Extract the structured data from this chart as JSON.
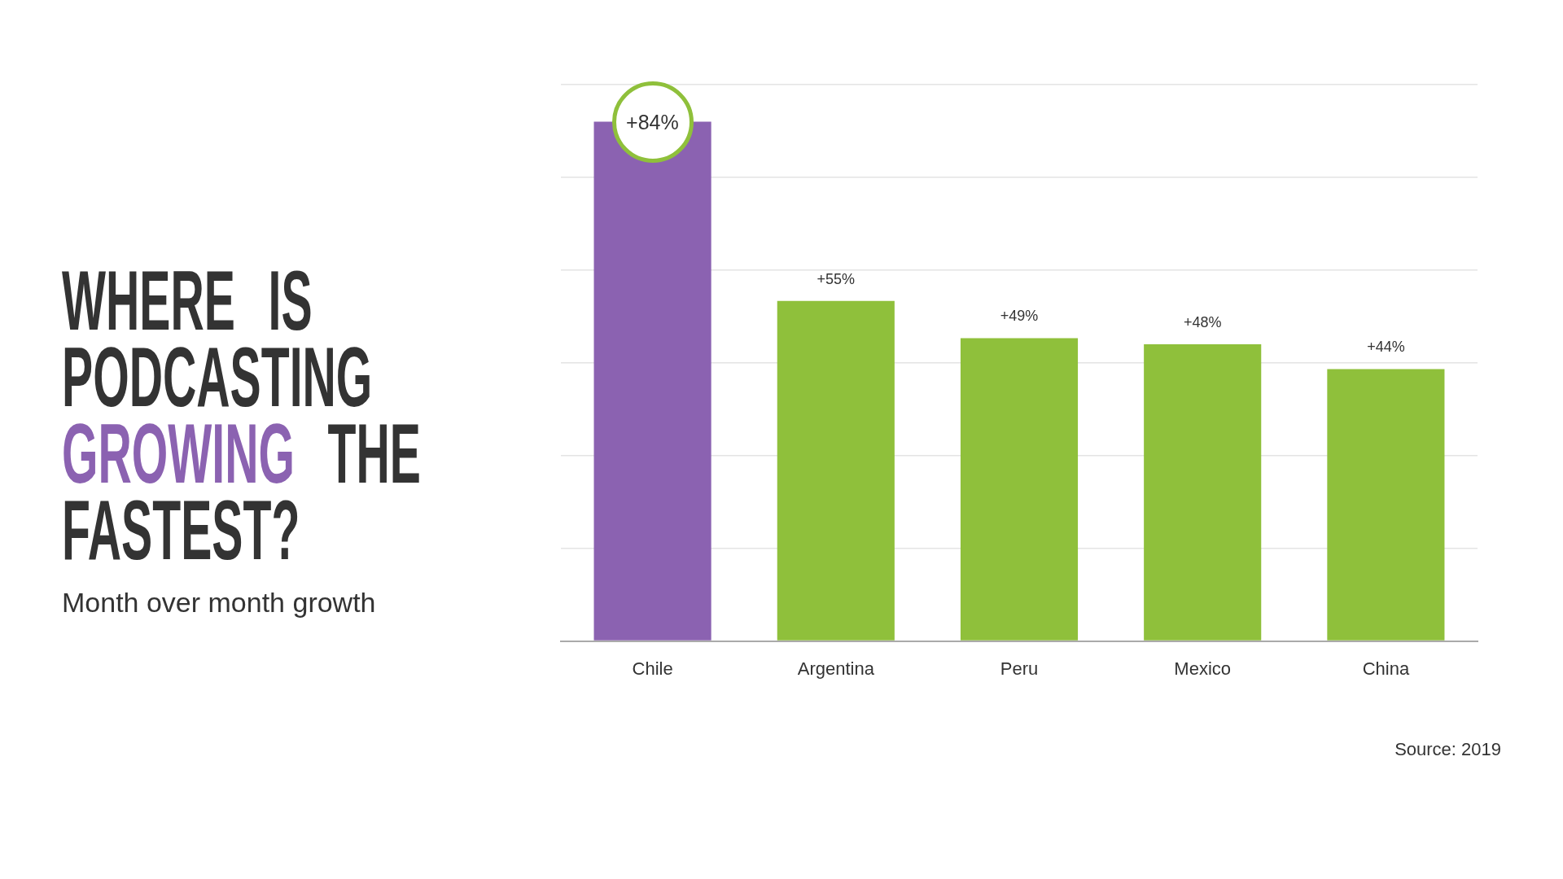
{
  "chart_data": {
    "type": "bar",
    "title": "WHERE IS PODCASTING GROWING THE FASTEST?",
    "subtitle": "Month over month growth",
    "categories": [
      "Chile",
      "Argentina",
      "Peru",
      "Mexico",
      "China"
    ],
    "values": [
      84,
      55,
      49,
      48,
      44
    ],
    "colors": [
      "#8b62b1",
      "#8fc03b",
      "#8fc03b",
      "#8fc03b",
      "#8fc03b"
    ],
    "value_labels": [
      "+84%",
      "+55%",
      "+49%",
      "+48%",
      "+44%"
    ],
    "ylim": [
      0,
      90
    ],
    "yticks": [
      {
        "value": 0,
        "label": null
      },
      {
        "value": 15,
        "label": null
      },
      {
        "value": 30,
        "label": null
      },
      {
        "value": 45,
        "label": null
      },
      {
        "value": 60,
        "label": null
      },
      {
        "value": 75,
        "label": null
      },
      {
        "value": 90,
        "label": null
      }
    ],
    "grid": "y",
    "tick_labels": "x",
    "annotations": [
      "Source: 2019"
    ]
  }
}
